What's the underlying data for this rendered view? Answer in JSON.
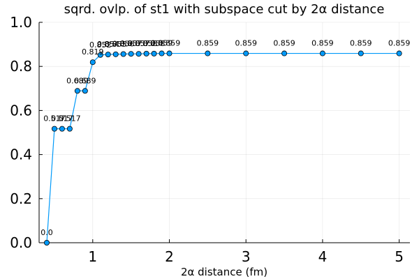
{
  "chart_data": {
    "type": "line",
    "title": "sqrd. ovlp. of st1 with subspace cut by 2α distance",
    "xlabel": "2α distance (fm)",
    "ylabel": "",
    "xlim": [
      0.3,
      5.14
    ],
    "ylim": [
      0.0,
      1.0
    ],
    "xticks": [
      1,
      2,
      3,
      4,
      5
    ],
    "xtick_labels": [
      "1",
      "2",
      "3",
      "4",
      "5"
    ],
    "yticks": [
      0.0,
      0.2,
      0.4,
      0.6,
      0.8,
      1.0
    ],
    "ytick_labels": [
      "0.0",
      "0.2",
      "0.4",
      "0.6",
      "0.8",
      "1.0"
    ],
    "grid": true,
    "legend": "none",
    "series_color": "#009AFA",
    "marker": "circle",
    "series": [
      {
        "x": [
          0.4,
          0.5,
          0.6,
          0.7,
          0.8,
          0.9,
          1.0,
          1.1,
          1.2,
          1.3,
          1.4,
          1.5,
          1.6,
          1.7,
          1.8,
          1.9,
          2.0,
          2.5,
          3.0,
          3.5,
          4.0,
          4.5,
          5.0
        ],
        "values": [
          0.0,
          0.517,
          0.517,
          0.517,
          0.689,
          0.689,
          0.819,
          0.852,
          0.854,
          0.855,
          0.856,
          0.857,
          0.857,
          0.858,
          0.858,
          0.859,
          0.859,
          0.859,
          0.859,
          0.859,
          0.859,
          0.859,
          0.859
        ],
        "labels": [
          "0.0",
          "0.517",
          "0.517",
          "0.517",
          "0.689",
          "0.689",
          "0.819",
          "0.852",
          "0.854",
          "0.855",
          "0.856",
          "0.857",
          "0.857",
          "0.858",
          "0.858",
          "0.859",
          "0.859",
          "0.859",
          "0.859",
          "0.859",
          "0.859",
          "0.859",
          "0.859"
        ]
      }
    ]
  }
}
